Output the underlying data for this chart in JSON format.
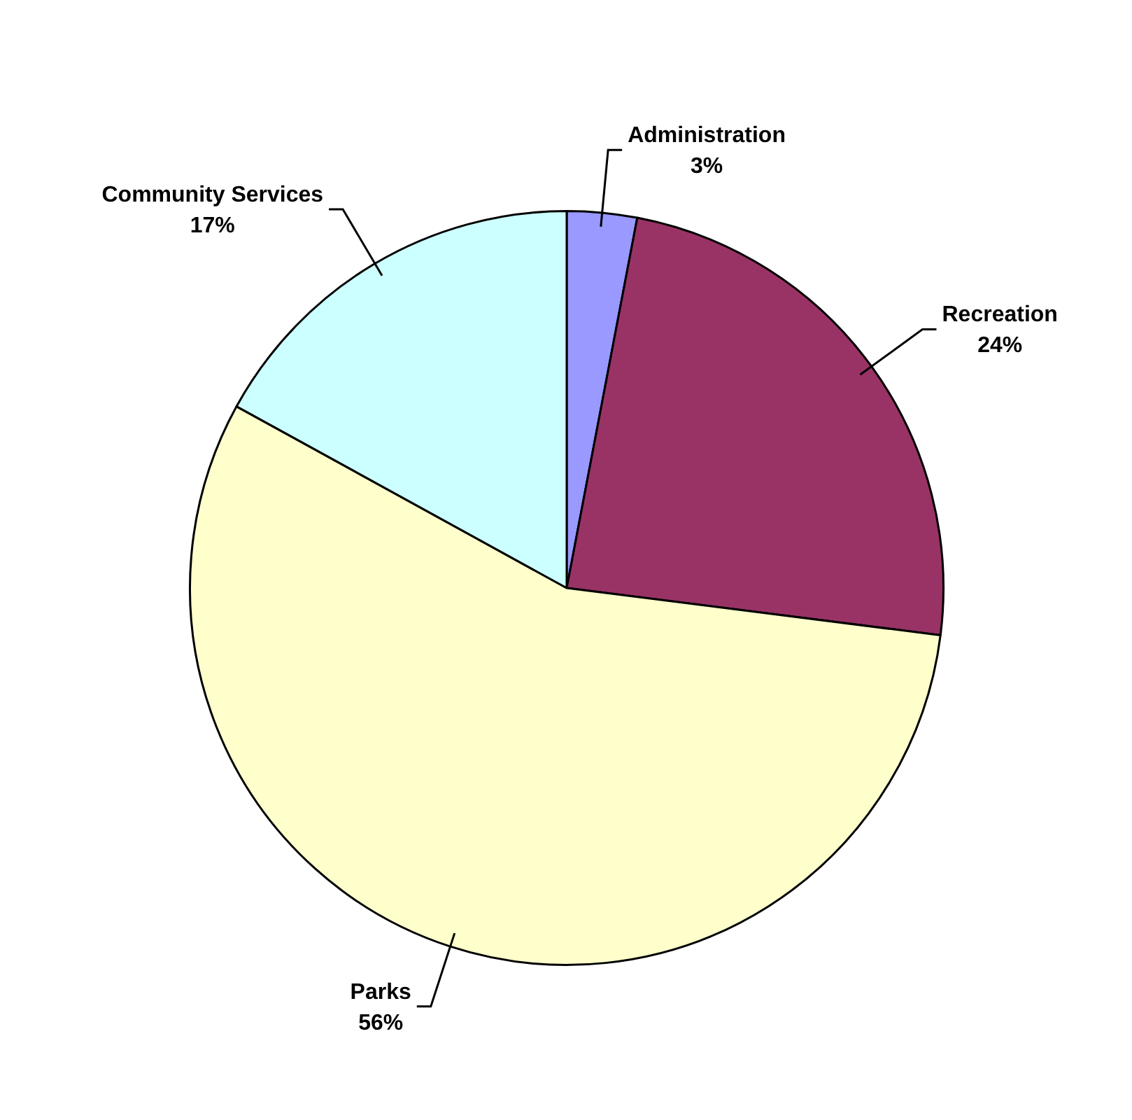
{
  "chart_data": {
    "type": "pie",
    "categories": [
      "Administration",
      "Recreation",
      "Parks",
      "Community Services"
    ],
    "values": [
      3,
      24,
      56,
      17
    ],
    "value_labels": [
      "3%",
      "24%",
      "56%",
      "17%"
    ],
    "colors": [
      "#9999ff",
      "#993366",
      "#ffffcc",
      "#ccffff"
    ],
    "legend": false
  }
}
